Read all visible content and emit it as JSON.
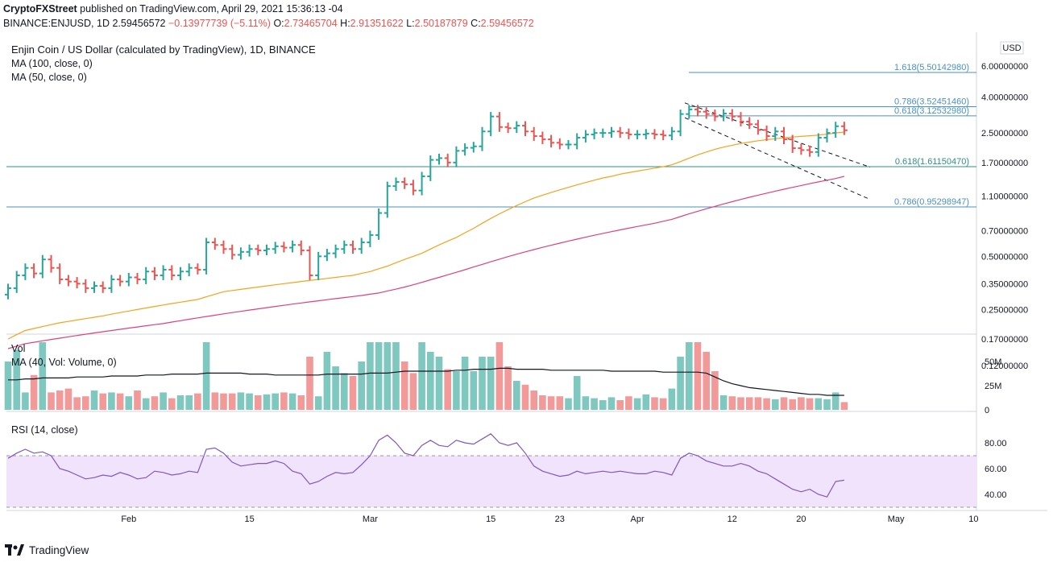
{
  "header": {
    "author": "CryptoFXStreet",
    "published": "published on TradingView.com, April 29, 2021 15:36:13 -04",
    "symbol": "BINANCE:ENJUSD, 1D",
    "last": "2.59456572",
    "change": "−0.13977739 (−5.11%)",
    "o_label": "O:",
    "o": "2.73465704",
    "h_label": "H:",
    "h": "2.91351622",
    "l_label": "L:",
    "l": "2.50187879",
    "c_label": "C:",
    "c": "2.59456572"
  },
  "legend": {
    "title": "Enjin Coin / US Dollar (calculated by TradingView), 1D, BINANCE",
    "ma100": "MA (100, close, 0)",
    "ma50": "MA (50, close, 0)",
    "vol": "Vol",
    "vol_ma": "MA (40, Vol: Volume, 0)",
    "rsi": "RSI (14, close)"
  },
  "footer": {
    "brand": "TradingView"
  },
  "colors": {
    "up": "#26a69a",
    "down": "#ef5350",
    "vol_up": "#7fc8c0",
    "vol_down": "#f29a99",
    "ma50": "#f7a21b",
    "ma100": "#e0407a",
    "fib": "#4a90c4",
    "rsi": "#7e57c2",
    "rsi_band": "#f1e3fb"
  },
  "chart_data": {
    "type": "ohlc",
    "price_axis": {
      "currency": "USD",
      "scale": "log",
      "ticks": [
        "6.00000000",
        "4.00000000",
        "2.50000000",
        "1.70000000",
        "1.10000000",
        "0.70000000",
        "0.50000000",
        "0.35000000",
        "0.25000000",
        "0.17000000",
        "0.12000000"
      ]
    },
    "volume_axis": {
      "ticks": [
        "50M",
        "25M",
        "0"
      ],
      "max": 70
    },
    "rsi_axis": {
      "ticks": [
        "80.00",
        "60.00",
        "40.00"
      ],
      "band": [
        30,
        70
      ]
    },
    "x_ticks": [
      {
        "label": "Feb",
        "day": 14
      },
      {
        "label": "15",
        "day": 28
      },
      {
        "label": "Mar",
        "day": 42
      },
      {
        "label": "15",
        "day": 56
      },
      {
        "label": "23",
        "day": 64
      },
      {
        "label": "Apr",
        "day": 73
      },
      {
        "label": "12",
        "day": 84
      },
      {
        "label": "20",
        "day": 92
      },
      {
        "label": "May",
        "day": 103
      },
      {
        "label": "10",
        "day": 112
      }
    ],
    "close": [
      0.33,
      0.39,
      0.43,
      0.4,
      0.48,
      0.43,
      0.37,
      0.36,
      0.35,
      0.33,
      0.34,
      0.33,
      0.37,
      0.36,
      0.38,
      0.37,
      0.41,
      0.39,
      0.42,
      0.39,
      0.41,
      0.43,
      0.42,
      0.6,
      0.58,
      0.55,
      0.51,
      0.53,
      0.55,
      0.54,
      0.55,
      0.57,
      0.56,
      0.58,
      0.54,
      0.39,
      0.5,
      0.52,
      0.55,
      0.58,
      0.55,
      0.6,
      0.66,
      0.88,
      1.25,
      1.32,
      1.28,
      1.18,
      1.42,
      1.76,
      1.8,
      1.7,
      1.98,
      2.06,
      2.1,
      2.55,
      3.1,
      2.7,
      2.66,
      2.75,
      2.55,
      2.4,
      2.3,
      2.2,
      2.15,
      2.15,
      2.35,
      2.45,
      2.5,
      2.5,
      2.55,
      2.5,
      2.45,
      2.45,
      2.48,
      2.45,
      2.42,
      2.55,
      3.2,
      3.4,
      3.3,
      3.2,
      3.1,
      3.22,
      3.1,
      2.9,
      2.8,
      2.6,
      2.4,
      2.55,
      2.3,
      2.05,
      2.0,
      1.95,
      2.35,
      2.5,
      2.73,
      2.59
    ],
    "ma50": [
      0.17,
      0.18,
      0.19,
      0.195,
      0.2,
      0.205,
      0.21,
      0.214,
      0.218,
      0.222,
      0.226,
      0.23,
      0.235,
      0.24,
      0.245,
      0.25,
      0.255,
      0.26,
      0.265,
      0.27,
      0.275,
      0.28,
      0.285,
      0.295,
      0.305,
      0.315,
      0.32,
      0.325,
      0.33,
      0.335,
      0.34,
      0.345,
      0.35,
      0.355,
      0.36,
      0.365,
      0.37,
      0.375,
      0.38,
      0.385,
      0.39,
      0.4,
      0.41,
      0.425,
      0.44,
      0.46,
      0.48,
      0.5,
      0.52,
      0.55,
      0.58,
      0.61,
      0.64,
      0.68,
      0.72,
      0.77,
      0.82,
      0.87,
      0.92,
      0.97,
      1.02,
      1.07,
      1.11,
      1.15,
      1.19,
      1.23,
      1.27,
      1.31,
      1.35,
      1.39,
      1.42,
      1.46,
      1.49,
      1.52,
      1.55,
      1.58,
      1.61,
      1.65,
      1.72,
      1.8,
      1.88,
      1.95,
      2.02,
      2.08,
      2.13,
      2.18,
      2.22,
      2.26,
      2.29,
      2.32,
      2.35,
      2.37,
      2.39,
      2.41,
      2.43,
      2.46,
      2.5,
      2.53
    ],
    "ma100": [
      0.15,
      0.155,
      0.16,
      0.163,
      0.166,
      0.169,
      0.172,
      0.175,
      0.178,
      0.181,
      0.184,
      0.187,
      0.19,
      0.193,
      0.196,
      0.199,
      0.202,
      0.205,
      0.208,
      0.212,
      0.216,
      0.22,
      0.224,
      0.228,
      0.232,
      0.236,
      0.24,
      0.244,
      0.248,
      0.252,
      0.256,
      0.26,
      0.264,
      0.268,
      0.272,
      0.276,
      0.28,
      0.284,
      0.288,
      0.292,
      0.296,
      0.3,
      0.305,
      0.31,
      0.318,
      0.326,
      0.335,
      0.345,
      0.356,
      0.368,
      0.38,
      0.393,
      0.406,
      0.42,
      0.435,
      0.45,
      0.466,
      0.482,
      0.498,
      0.514,
      0.53,
      0.546,
      0.562,
      0.578,
      0.594,
      0.61,
      0.626,
      0.642,
      0.658,
      0.674,
      0.69,
      0.706,
      0.722,
      0.738,
      0.754,
      0.77,
      0.79,
      0.81,
      0.84,
      0.87,
      0.9,
      0.93,
      0.96,
      0.99,
      1.02,
      1.05,
      1.08,
      1.11,
      1.14,
      1.17,
      1.2,
      1.23,
      1.26,
      1.29,
      1.32,
      1.35,
      1.38,
      1.42
    ],
    "volume": [
      50,
      62,
      18,
      36,
      70,
      18,
      20,
      22,
      13,
      14,
      20,
      17,
      18,
      17,
      14,
      20,
      12,
      14,
      18,
      12,
      15,
      15,
      17,
      70,
      18,
      17,
      17,
      18,
      17,
      15,
      16,
      17,
      18,
      17,
      15,
      55,
      14,
      60,
      45,
      38,
      35,
      50,
      70,
      70,
      70,
      70,
      50,
      38,
      70,
      60,
      55,
      42,
      40,
      55,
      40,
      55,
      55,
      70,
      45,
      30,
      26,
      20,
      15,
      14,
      14,
      12,
      35,
      14,
      12,
      10,
      13,
      10,
      14,
      12,
      16,
      13,
      12,
      22,
      55,
      70,
      70,
      60,
      40,
      15,
      14,
      13,
      13,
      13,
      12,
      11,
      13,
      11,
      13,
      12,
      12,
      11,
      18,
      8
    ],
    "vol_ma": [
      31,
      31,
      32,
      32,
      33,
      33,
      33,
      33,
      34,
      34,
      34,
      34,
      35,
      35,
      35,
      35,
      36,
      36,
      36,
      37,
      37,
      37,
      37,
      38,
      38,
      38,
      38,
      38,
      37,
      37,
      37,
      36,
      36,
      36,
      36,
      36,
      36,
      37,
      37,
      37,
      37,
      37,
      38,
      38,
      38,
      39,
      40,
      40,
      40,
      40,
      40,
      40,
      41,
      41,
      42,
      42,
      42,
      43,
      43,
      42,
      42,
      42,
      42,
      41,
      41,
      41,
      41,
      41,
      41,
      41,
      40,
      40,
      40,
      40,
      40,
      40,
      39,
      39,
      39,
      39,
      39,
      38,
      34,
      30,
      27,
      25,
      23,
      22,
      21,
      20,
      19,
      18,
      17,
      16,
      16,
      15,
      15,
      15
    ],
    "rsi": [
      68,
      72,
      75,
      72,
      73,
      70,
      60,
      58,
      55,
      52,
      53,
      55,
      54,
      57,
      55,
      52,
      53,
      58,
      57,
      55,
      56,
      58,
      57,
      75,
      76,
      72,
      65,
      62,
      63,
      64,
      64,
      66,
      64,
      58,
      56,
      48,
      50,
      54,
      57,
      56,
      57,
      63,
      70,
      82,
      86,
      80,
      72,
      70,
      78,
      82,
      78,
      77,
      82,
      80,
      79,
      83,
      87,
      80,
      78,
      80,
      72,
      62,
      58,
      56,
      54,
      55,
      58,
      56,
      57,
      58,
      57,
      58,
      57,
      56,
      56,
      58,
      57,
      55,
      68,
      72,
      70,
      66,
      64,
      62,
      62,
      64,
      62,
      58,
      56,
      52,
      48,
      44,
      42,
      44,
      40,
      38,
      50,
      51
    ]
  },
  "annotations": {
    "fib": [
      {
        "label": "1.618(5.50142980)",
        "value": 5.5014298
      },
      {
        "label": "0.786(3.52451460)",
        "value": 3.5245146
      },
      {
        "label": "0.618(3.12532980)",
        "value": 3.1253298
      },
      {
        "label": "0.618(1.61150470)",
        "value": 1.6115047
      },
      {
        "label": "0.786(0.95298947)",
        "value": 0.95298947
      }
    ],
    "trend_upper": [
      [
        78.5,
        3.7
      ],
      [
        100,
        1.6
      ]
    ],
    "trend_lower": [
      [
        78.5,
        3.05
      ],
      [
        100,
        1.05
      ]
    ]
  }
}
